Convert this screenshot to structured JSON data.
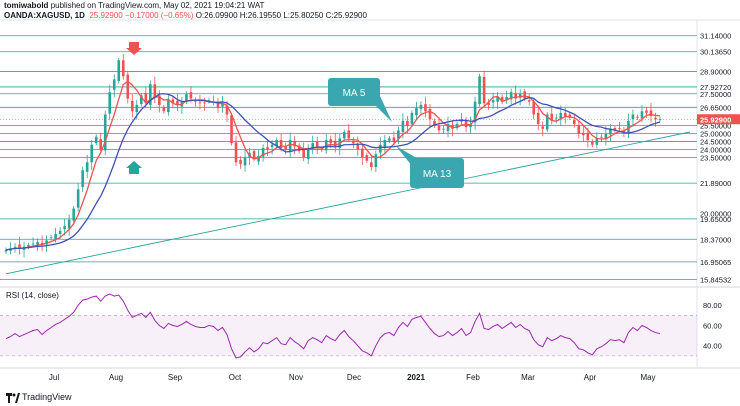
{
  "header": {
    "line1_author": "tomiwabold",
    "line1_rest": "published on TradingView.com, May 02, 2021 19:04:21 WAT",
    "symbol": "OANDA:XAGUSD, 1D",
    "last": "25.92900",
    "change": "−0.17000 (−0.65%)",
    "ohlc": "O:26.09900 H:26.19550 L:25.80250 C:25.92900"
  },
  "footer": {
    "brand": "TradingView"
  },
  "colors": {
    "up": "#26a69a",
    "down": "#ef5350",
    "ma5": "#ef5350",
    "ma13": "#3f51b5",
    "level": "#26a69a",
    "rsi": "#9c27b0",
    "callout": "#3aa6b0",
    "price_tag": "#ef5350"
  },
  "chart_data": [
    {
      "type": "candlestick",
      "symbol": "OANDA:XAGUSD",
      "timeframe": "1D",
      "x_ticks": [
        "Jul",
        "Aug",
        "Sep",
        "Oct",
        "Nov",
        "Dec",
        "2021",
        "Feb",
        "Mar",
        "Apr",
        "May"
      ],
      "price_levels": [
        "31.14000",
        "30.13650",
        "28.90000",
        "27.92720",
        "27.50000",
        "26.65000",
        "25.50000",
        "25.00000",
        "24.50000",
        "24.00000",
        "23.50000",
        "21.89000",
        "20.00000",
        "19.65000",
        "18.37000",
        "16.95065",
        "15.84532"
      ],
      "ylim": [
        15.5,
        31.5
      ],
      "last_price_label": "25.92900",
      "annotations": [
        "MA 5",
        "MA 13"
      ],
      "series": [
        {
          "name": "MA 5",
          "kind": "moving_average",
          "period": 5
        },
        {
          "name": "MA 13",
          "kind": "moving_average",
          "period": 13
        }
      ],
      "close": [
        17.7,
        17.8,
        17.9,
        17.8,
        17.9,
        18.0,
        18.1,
        18.2,
        18.0,
        18.3,
        18.5,
        18.7,
        18.9,
        19.2,
        19.6,
        20.3,
        21.5,
        22.7,
        23.2,
        24.3,
        24.8,
        24.0,
        26.2,
        27.6,
        28.4,
        29.6,
        28.6,
        27.2,
        26.4,
        26.8,
        27.4,
        26.9,
        28.1,
        27.3,
        26.8,
        26.4,
        27.1,
        26.9,
        26.8,
        27.0,
        27.5,
        27.2,
        27.0,
        26.9,
        26.9,
        27.1,
        27.0,
        26.6,
        26.9,
        26.2,
        24.4,
        23.2,
        23.1,
        23.5,
        23.8,
        23.4,
        23.6,
        24.1,
        24.0,
        24.3,
        24.6,
        24.1,
        24.0,
        24.6,
        24.2,
        23.9,
        23.5,
        24.1,
        24.4,
        24.2,
        24.0,
        24.6,
        24.4,
        24.2,
        24.7,
        25.1,
        24.7,
        24.4,
        24.0,
        23.5,
        23.3,
        22.9,
        23.7,
        24.3,
        24.6,
        24.7,
        24.5,
        25.2,
        25.8,
        25.5,
        26.3,
        26.6,
        26.8,
        26.4,
        25.9,
        25.5,
        25.2,
        25.3,
        25.6,
        25.3,
        25.6,
        25.9,
        25.4,
        25.6,
        27.0,
        28.6,
        26.9,
        26.8,
        27.1,
        27.3,
        27.0,
        27.3,
        27.6,
        27.2,
        27.5,
        27.2,
        27.0,
        26.2,
        25.6,
        25.3,
        26.2,
        25.8,
        26.0,
        26.3,
        26.1,
        26.0,
        25.6,
        25.0,
        24.9,
        24.6,
        24.3,
        24.7,
        24.8,
        25.0,
        25.3,
        25.2,
        25.3,
        25.1,
        25.8,
        26.2,
        26.0,
        26.4,
        26.3,
        26.1,
        25.9,
        25.9
      ]
    },
    {
      "type": "line",
      "title": "RSI (14, close)",
      "y_ticks": [
        "80.00",
        "60.00",
        "40.00"
      ],
      "band": [
        30,
        70
      ],
      "ylim": [
        20,
        95
      ],
      "series": [
        {
          "name": "RSI (14, close)",
          "values": [
            47,
            49,
            52,
            49,
            51,
            53,
            55,
            56,
            51,
            55,
            58,
            61,
            63,
            66,
            69,
            73,
            80,
            85,
            86,
            88,
            89,
            84,
            89,
            91,
            89,
            90,
            84,
            75,
            68,
            70,
            72,
            68,
            73,
            65,
            60,
            57,
            62,
            60,
            59,
            61,
            64,
            61,
            59,
            58,
            58,
            60,
            59,
            55,
            58,
            51,
            37,
            28,
            29,
            34,
            38,
            34,
            37,
            43,
            42,
            45,
            48,
            42,
            41,
            48,
            44,
            41,
            37,
            45,
            48,
            46,
            43,
            50,
            47,
            45,
            51,
            55,
            49,
            45,
            40,
            35,
            33,
            30,
            40,
            48,
            52,
            53,
            50,
            58,
            63,
            59,
            66,
            68,
            69,
            63,
            57,
            52,
            49,
            50,
            54,
            50,
            53,
            57,
            50,
            53,
            64,
            72,
            57,
            56,
            59,
            61,
            57,
            60,
            63,
            58,
            61,
            57,
            55,
            46,
            41,
            39,
            48,
            45,
            47,
            50,
            48,
            47,
            43,
            37,
            36,
            33,
            31,
            37,
            39,
            42,
            46,
            45,
            46,
            43,
            53,
            58,
            55,
            60,
            58,
            55,
            53,
            52
          ]
        }
      ]
    }
  ]
}
